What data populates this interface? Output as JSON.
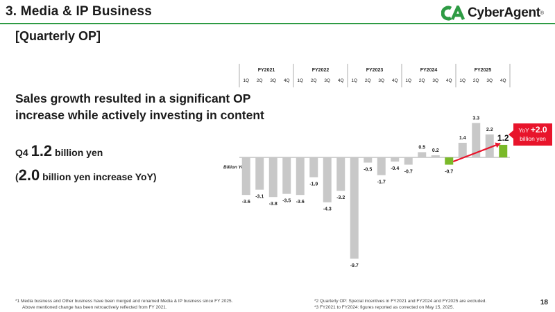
{
  "header": {
    "title": "3.  Media & IP Business",
    "section": "[Quarterly OP]",
    "logo_text": "CyberAgent",
    "logo_reg": "®",
    "brand_color": "#2e9b44"
  },
  "summary": {
    "headline_line1": "Sales growth resulted in a significant OP",
    "headline_line2": "increase while actively investing in content",
    "q4_prefix": "Q4 ",
    "q4_value": "1.2",
    "q4_suffix": " billion yen",
    "yoy_open": "(",
    "yoy_value": "2.0",
    "yoy_suffix": " billion yen increase YoY)"
  },
  "badge": {
    "line1_prefix": "YoY ",
    "line1_value": "+2.0",
    "line2": "billion yen",
    "color": "#e8142b"
  },
  "chart_data": {
    "type": "bar",
    "unit_label": "Billion Yen",
    "fiscal_years": [
      "FY2021",
      "FY2022",
      "FY2023",
      "FY2024",
      "FY2025"
    ],
    "quarters": [
      "1Q",
      "2Q",
      "3Q",
      "4Q"
    ],
    "values": [
      -3.6,
      -3.1,
      -3.8,
      -3.5,
      -3.6,
      -1.9,
      -4.3,
      -3.2,
      -9.7,
      -0.5,
      -1.7,
      -0.4,
      -0.7,
      0.5,
      0.2,
      -0.7,
      1.4,
      3.3,
      2.2,
      1.2
    ],
    "highlight_indices": [
      15,
      19
    ],
    "bar_color": "#c8c8c8",
    "highlight_color": "#7ab929",
    "arrow_color": "#e8142b",
    "current_value_label": "1.2"
  },
  "footnotes": {
    "left_line1": "*1  Media business and Other business have been merged and renamed Media & IP business since FY 2025.",
    "left_line2": "Above mentioned change has been retroactively reflected from FY 2021.",
    "right_line1": "*2  Quarterly OP: Special incentives in FY2021 and FY2024 and FY2025 are excluded.",
    "right_line2": "*3  FY2021 to FY2024: figures reported as corrected on May 15, 2025."
  },
  "page_number": "18"
}
